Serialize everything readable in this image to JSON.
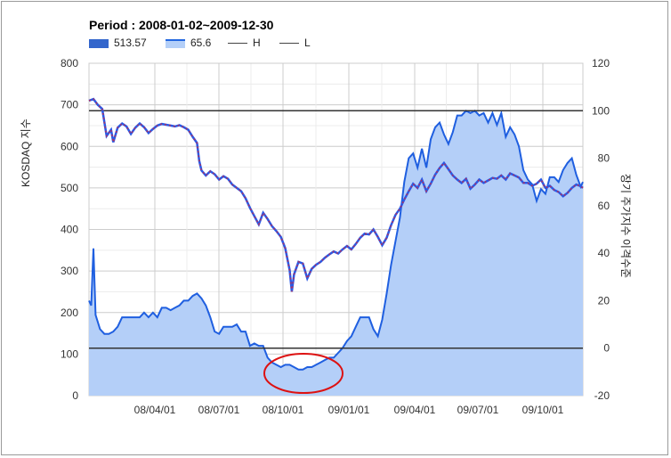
{
  "chart_data": {
    "type": "area",
    "title": "Period : 2008-01-02~2009-12-30",
    "legend": [
      {
        "name": "513.57",
        "color": "#3366cc",
        "style": "filled-box"
      },
      {
        "name": "65.6",
        "color": "#6fa0f0",
        "style": "area-line"
      },
      {
        "name": "H",
        "color": "#444444",
        "style": "line"
      },
      {
        "name": "L",
        "color": "#444444",
        "style": "line"
      }
    ],
    "y_left": {
      "label": "KOSDAQ 지수",
      "min": 0,
      "max": 800,
      "ticks": [
        "0",
        "100",
        "200",
        "300",
        "400",
        "500",
        "600",
        "700",
        "800"
      ]
    },
    "y_right": {
      "label": "장기 주가지수 이격수준",
      "min": -20,
      "max": 120,
      "ticks": [
        "-20",
        "0",
        "20",
        "40",
        "60",
        "80",
        "100",
        "120"
      ]
    },
    "x": {
      "labels": [
        "08/04/01",
        "08/07/01",
        "08/10/01",
        "09/01/01",
        "09/04/01",
        "09/07/01",
        "09/10/01"
      ]
    },
    "h_line": 100,
    "l_line": 0,
    "series_index_kosdaq": [
      [
        0,
        710
      ],
      [
        2,
        714
      ],
      [
        4,
        700
      ],
      [
        6,
        690
      ],
      [
        8,
        625
      ],
      [
        10,
        640
      ],
      [
        11,
        610
      ],
      [
        13,
        645
      ],
      [
        15,
        655
      ],
      [
        17,
        648
      ],
      [
        19,
        630
      ],
      [
        21,
        645
      ],
      [
        23,
        655
      ],
      [
        25,
        646
      ],
      [
        27,
        632
      ],
      [
        29,
        642
      ],
      [
        31,
        650
      ],
      [
        33,
        654
      ],
      [
        35,
        652
      ],
      [
        37,
        650
      ],
      [
        39,
        648
      ],
      [
        41,
        651
      ],
      [
        43,
        646
      ],
      [
        45,
        640
      ],
      [
        47,
        623
      ],
      [
        49,
        608
      ],
      [
        50,
        565
      ],
      [
        51,
        542
      ],
      [
        53,
        530
      ],
      [
        55,
        540
      ],
      [
        57,
        533
      ],
      [
        59,
        520
      ],
      [
        61,
        528
      ],
      [
        63,
        522
      ],
      [
        65,
        508
      ],
      [
        67,
        500
      ],
      [
        69,
        492
      ],
      [
        71,
        475
      ],
      [
        73,
        452
      ],
      [
        75,
        432
      ],
      [
        77,
        412
      ],
      [
        79,
        440
      ],
      [
        81,
        425
      ],
      [
        83,
        408
      ],
      [
        85,
        396
      ],
      [
        87,
        382
      ],
      [
        89,
        355
      ],
      [
        91,
        302
      ],
      [
        92,
        250
      ],
      [
        93,
        292
      ],
      [
        95,
        322
      ],
      [
        97,
        318
      ],
      [
        99,
        282
      ],
      [
        101,
        305
      ],
      [
        103,
        315
      ],
      [
        105,
        322
      ],
      [
        107,
        332
      ],
      [
        109,
        340
      ],
      [
        111,
        347
      ],
      [
        113,
        342
      ],
      [
        115,
        352
      ],
      [
        117,
        360
      ],
      [
        119,
        352
      ],
      [
        121,
        365
      ],
      [
        123,
        380
      ],
      [
        125,
        390
      ],
      [
        127,
        388
      ],
      [
        129,
        400
      ],
      [
        131,
        382
      ],
      [
        133,
        362
      ],
      [
        135,
        380
      ],
      [
        137,
        410
      ],
      [
        139,
        435
      ],
      [
        141,
        450
      ],
      [
        143,
        472
      ],
      [
        145,
        492
      ],
      [
        147,
        510
      ],
      [
        149,
        500
      ],
      [
        151,
        520
      ],
      [
        153,
        492
      ],
      [
        155,
        510
      ],
      [
        157,
        532
      ],
      [
        159,
        548
      ],
      [
        161,
        560
      ],
      [
        163,
        545
      ],
      [
        165,
        530
      ],
      [
        167,
        520
      ],
      [
        169,
        512
      ],
      [
        171,
        522
      ],
      [
        173,
        498
      ],
      [
        175,
        508
      ],
      [
        177,
        520
      ],
      [
        179,
        512
      ],
      [
        181,
        518
      ],
      [
        183,
        524
      ],
      [
        185,
        522
      ],
      [
        187,
        530
      ],
      [
        189,
        520
      ],
      [
        191,
        535
      ],
      [
        193,
        530
      ],
      [
        195,
        525
      ],
      [
        197,
        512
      ],
      [
        199,
        512
      ],
      [
        201,
        505
      ],
      [
        203,
        510
      ],
      [
        205,
        520
      ],
      [
        207,
        500
      ],
      [
        209,
        505
      ],
      [
        211,
        495
      ],
      [
        213,
        490
      ],
      [
        215,
        480
      ],
      [
        217,
        488
      ],
      [
        219,
        500
      ],
      [
        221,
        508
      ],
      [
        223,
        504
      ],
      [
        224,
        500
      ]
    ],
    "series_disparity": [
      [
        0,
        20
      ],
      [
        1,
        18
      ],
      [
        2,
        42
      ],
      [
        3,
        14
      ],
      [
        5,
        8
      ],
      [
        7,
        6
      ],
      [
        9,
        6
      ],
      [
        11,
        7
      ],
      [
        13,
        9
      ],
      [
        15,
        13
      ],
      [
        17,
        13
      ],
      [
        19,
        13
      ],
      [
        21,
        13
      ],
      [
        23,
        13
      ],
      [
        25,
        15
      ],
      [
        27,
        13
      ],
      [
        29,
        15
      ],
      [
        31,
        13
      ],
      [
        33,
        17
      ],
      [
        35,
        17
      ],
      [
        37,
        16
      ],
      [
        39,
        17
      ],
      [
        41,
        18
      ],
      [
        43,
        20
      ],
      [
        45,
        20
      ],
      [
        47,
        22
      ],
      [
        49,
        23
      ],
      [
        51,
        21
      ],
      [
        53,
        18
      ],
      [
        55,
        13
      ],
      [
        57,
        7
      ],
      [
        59,
        6
      ],
      [
        61,
        9
      ],
      [
        63,
        9
      ],
      [
        65,
        9
      ],
      [
        67,
        10
      ],
      [
        69,
        7
      ],
      [
        71,
        7
      ],
      [
        73,
        1
      ],
      [
        75,
        2
      ],
      [
        77,
        1
      ],
      [
        79,
        1
      ],
      [
        81,
        -4
      ],
      [
        83,
        -6
      ],
      [
        85,
        -7
      ],
      [
        87,
        -8
      ],
      [
        89,
        -7
      ],
      [
        91,
        -7
      ],
      [
        93,
        -8
      ],
      [
        95,
        -9
      ],
      [
        97,
        -9
      ],
      [
        99,
        -8
      ],
      [
        101,
        -8
      ],
      [
        103,
        -7
      ],
      [
        105,
        -6
      ],
      [
        107,
        -5
      ],
      [
        109,
        -4
      ],
      [
        111,
        -4
      ],
      [
        113,
        -2
      ],
      [
        115,
        0
      ],
      [
        117,
        3
      ],
      [
        119,
        5
      ],
      [
        121,
        9
      ],
      [
        123,
        13
      ],
      [
        125,
        13
      ],
      [
        127,
        13
      ],
      [
        129,
        8
      ],
      [
        131,
        5
      ],
      [
        133,
        12
      ],
      [
        135,
        23
      ],
      [
        137,
        35
      ],
      [
        139,
        45
      ],
      [
        141,
        55
      ],
      [
        143,
        70
      ],
      [
        145,
        80
      ],
      [
        147,
        82
      ],
      [
        149,
        76
      ],
      [
        151,
        84
      ],
      [
        153,
        76
      ],
      [
        155,
        88
      ],
      [
        157,
        93
      ],
      [
        159,
        95
      ],
      [
        161,
        90
      ],
      [
        163,
        86
      ],
      [
        165,
        91
      ],
      [
        167,
        98
      ],
      [
        169,
        98
      ],
      [
        171,
        100
      ],
      [
        173,
        99
      ],
      [
        175,
        100
      ],
      [
        177,
        98
      ],
      [
        179,
        99
      ],
      [
        181,
        95
      ],
      [
        183,
        99
      ],
      [
        185,
        94
      ],
      [
        187,
        99
      ],
      [
        189,
        89
      ],
      [
        191,
        93
      ],
      [
        193,
        90
      ],
      [
        195,
        85
      ],
      [
        197,
        75
      ],
      [
        199,
        71
      ],
      [
        201,
        69
      ],
      [
        203,
        62
      ],
      [
        205,
        67
      ],
      [
        207,
        65
      ],
      [
        209,
        72
      ],
      [
        211,
        72
      ],
      [
        213,
        70
      ],
      [
        215,
        75
      ],
      [
        217,
        78
      ],
      [
        219,
        80
      ],
      [
        221,
        73
      ],
      [
        223,
        68
      ],
      [
        224,
        70
      ]
    ]
  }
}
